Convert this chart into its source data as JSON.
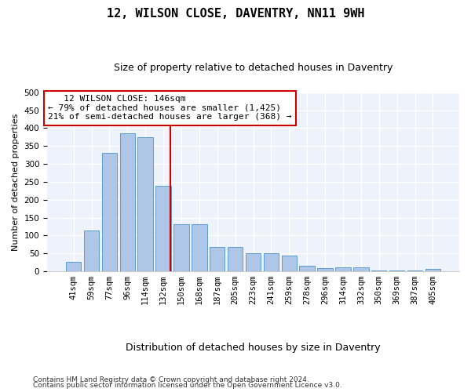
{
  "title": "12, WILSON CLOSE, DAVENTRY, NN11 9WH",
  "subtitle": "Size of property relative to detached houses in Daventry",
  "xlabel": "Distribution of detached houses by size in Daventry",
  "ylabel": "Number of detached properties",
  "categories": [
    "41sqm",
    "59sqm",
    "77sqm",
    "96sqm",
    "114sqm",
    "132sqm",
    "150sqm",
    "168sqm",
    "187sqm",
    "205sqm",
    "223sqm",
    "241sqm",
    "259sqm",
    "278sqm",
    "296sqm",
    "314sqm",
    "332sqm",
    "350sqm",
    "369sqm",
    "387sqm",
    "405sqm"
  ],
  "values": [
    27,
    115,
    330,
    385,
    375,
    238,
    132,
    132,
    68,
    68,
    50,
    50,
    43,
    15,
    8,
    10,
    10,
    3,
    2,
    2,
    7
  ],
  "bar_color": "#aec6e8",
  "bar_edge_color": "#5b9bd5",
  "vline_x_index": 5.4,
  "vline_color": "#cc0000",
  "annotation_line1": "   12 WILSON CLOSE: 146sqm",
  "annotation_line2": "← 79% of detached houses are smaller (1,425)",
  "annotation_line3": "21% of semi-detached houses are larger (368) →",
  "annotation_box_color": "#cc0000",
  "ylim": [
    0,
    500
  ],
  "yticks": [
    0,
    50,
    100,
    150,
    200,
    250,
    300,
    350,
    400,
    450,
    500
  ],
  "footer1": "Contains HM Land Registry data © Crown copyright and database right 2024.",
  "footer2": "Contains public sector information licensed under the Open Government Licence v3.0.",
  "background_color": "#eef3fb",
  "grid_color": "#ffffff",
  "title_fontsize": 11,
  "subtitle_fontsize": 9,
  "ylabel_fontsize": 8,
  "xlabel_fontsize": 9,
  "tick_fontsize": 7.5,
  "annotation_fontsize": 8,
  "footer_fontsize": 6.5
}
